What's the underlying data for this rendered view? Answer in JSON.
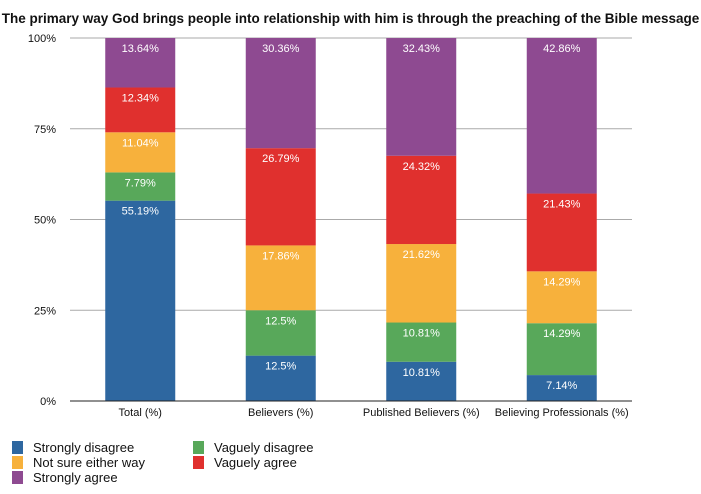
{
  "chart_data": {
    "type": "bar",
    "stacked": true,
    "title": "The primary way God brings people into relationship with him is through the preaching of the Bible message",
    "xlabel": "",
    "ylabel": "",
    "ylim": [
      0,
      100
    ],
    "yticks": [
      "0%",
      "25%",
      "50%",
      "75%",
      "100%"
    ],
    "grid": true,
    "legend_position": "bottom-left",
    "categories": [
      "Total (%)",
      "Believers (%)",
      "Published Believers (%)",
      "Believing Professionals (%)"
    ],
    "series": [
      {
        "name": "Strongly disagree",
        "color": "#2e67a0",
        "values": [
          55.19,
          12.5,
          10.81,
          7.14
        ],
        "labels": [
          "55.19%",
          "12.5%",
          "10.81%",
          "7.14%"
        ]
      },
      {
        "name": "Vaguely disagree",
        "color": "#58a85a",
        "values": [
          7.79,
          12.5,
          10.81,
          14.29
        ],
        "labels": [
          "7.79%",
          "12.5%",
          "10.81%",
          "14.29%"
        ]
      },
      {
        "name": "Not sure either way",
        "color": "#f7b13c",
        "values": [
          11.04,
          17.86,
          21.62,
          14.29
        ],
        "labels": [
          "11.04%",
          "17.86%",
          "21.62%",
          "14.29%"
        ]
      },
      {
        "name": "Vaguely agree",
        "color": "#e0302e",
        "values": [
          12.34,
          26.79,
          24.32,
          21.43
        ],
        "labels": [
          "12.34%",
          "26.79%",
          "24.32%",
          "21.43%"
        ]
      },
      {
        "name": "Strongly agree",
        "color": "#8e4a91",
        "values": [
          13.64,
          30.36,
          32.43,
          42.86
        ],
        "labels": [
          "13.64%",
          "30.36%",
          "32.43%",
          "42.86%"
        ]
      }
    ]
  }
}
